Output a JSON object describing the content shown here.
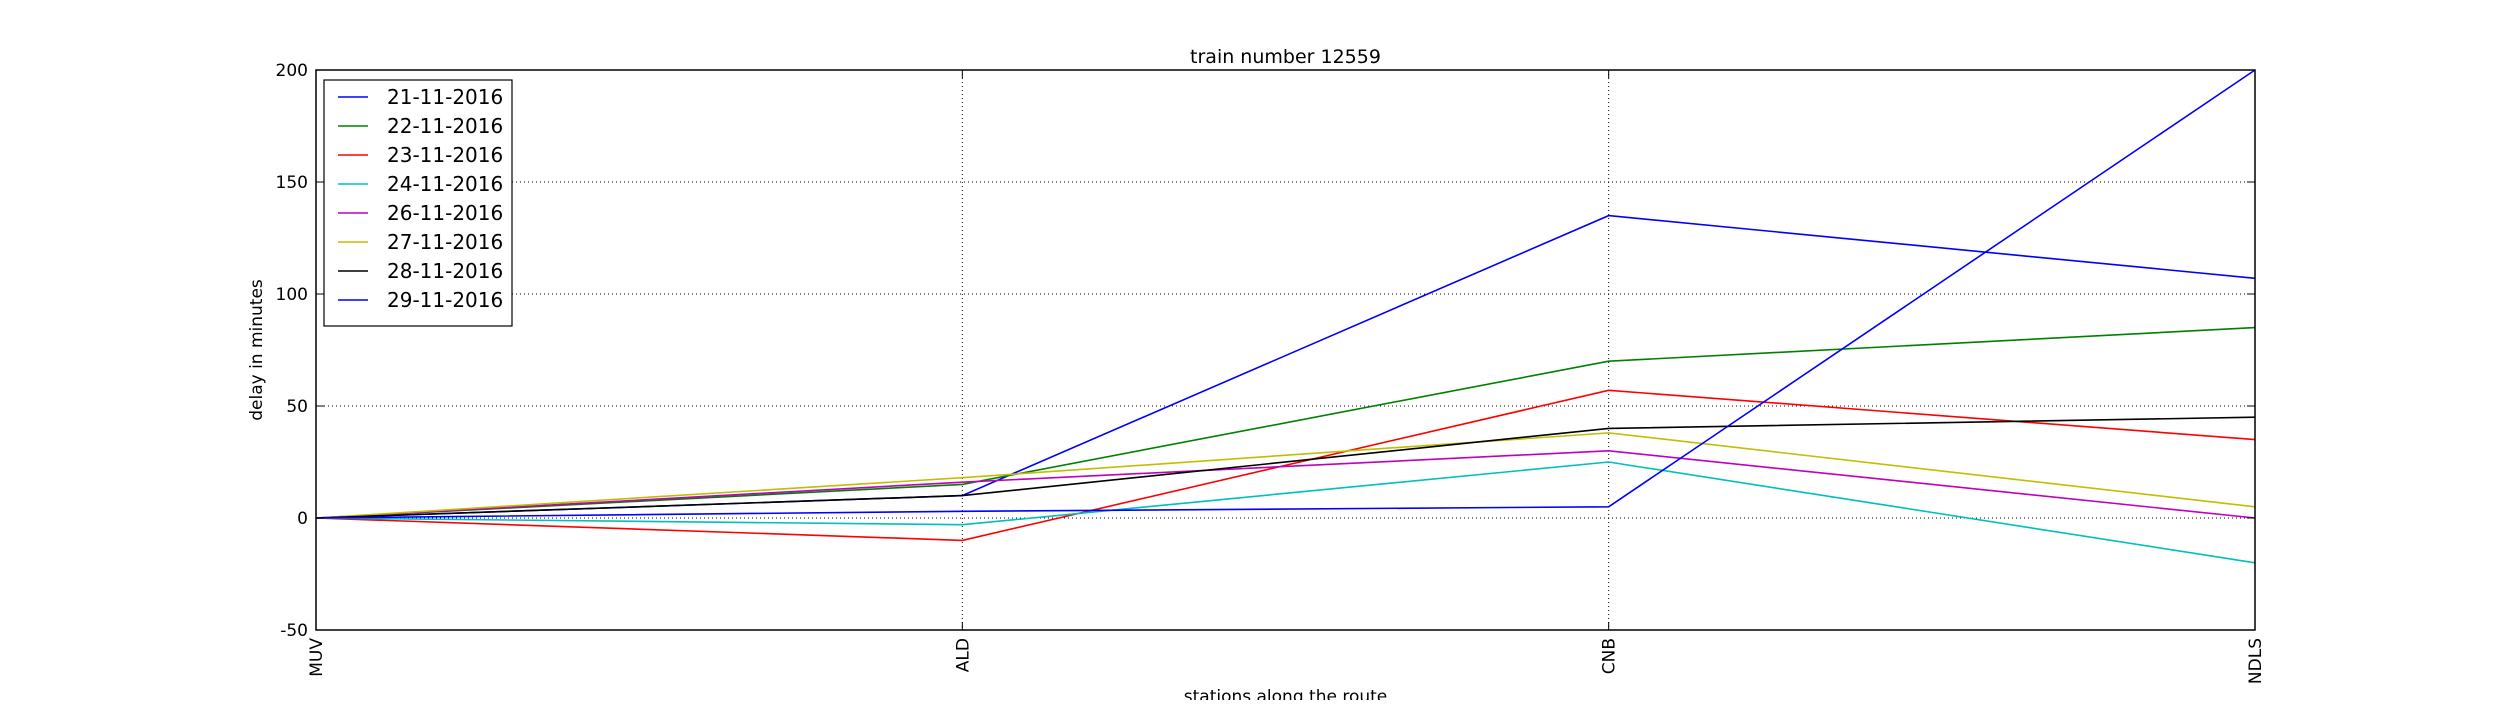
{
  "chart_data": {
    "type": "line",
    "title": "train number 12559",
    "xlabel": "stations along the route",
    "ylabel": "delay in minutes",
    "categories": [
      "MUV",
      "ALD",
      "CNB",
      "NDLS"
    ],
    "ylim": [
      -50,
      200
    ],
    "yticks": [
      -50,
      0,
      50,
      100,
      150,
      200
    ],
    "grid": true,
    "legend_position": "top-left",
    "series": [
      {
        "name": "21-11-2016",
        "color": "#0000ff",
        "values": [
          0,
          10,
          135,
          107
        ]
      },
      {
        "name": "22-11-2016",
        "color": "#008000",
        "values": [
          0,
          15,
          70,
          85
        ]
      },
      {
        "name": "23-11-2016",
        "color": "#ff0000",
        "values": [
          0,
          -10,
          57,
          35
        ]
      },
      {
        "name": "24-11-2016",
        "color": "#00bfbf",
        "values": [
          0,
          -3,
          25,
          -20
        ]
      },
      {
        "name": "26-11-2016",
        "color": "#bf00bf",
        "values": [
          0,
          16,
          30,
          0
        ]
      },
      {
        "name": "27-11-2016",
        "color": "#bfbf00",
        "values": [
          0,
          18,
          38,
          5
        ]
      },
      {
        "name": "28-11-2016",
        "color": "#000000",
        "values": [
          0,
          10,
          40,
          45
        ]
      },
      {
        "name": "29-11-2016",
        "color": "#0000ff",
        "values": [
          0,
          3,
          5,
          200
        ]
      }
    ]
  }
}
